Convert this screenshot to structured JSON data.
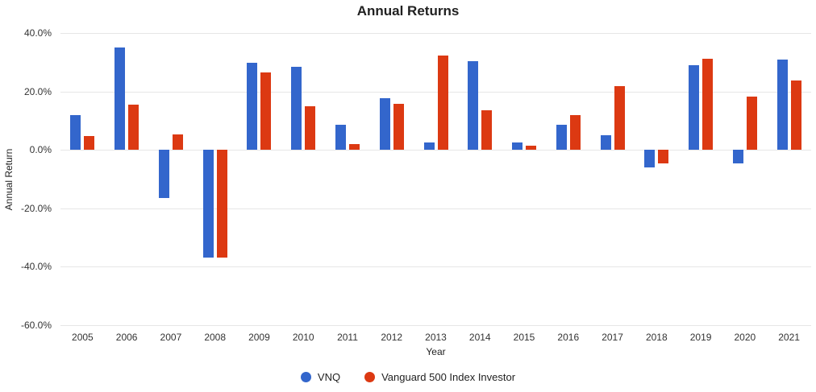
{
  "chart_data": {
    "type": "bar",
    "title": "Annual Returns",
    "xlabel": "Year",
    "ylabel": "Annual Return",
    "grid": true,
    "legend_position": "bottom",
    "ylim": [
      -60,
      40
    ],
    "ytick_step": 20,
    "yticks": [
      {
        "value": 40,
        "label": "40.0%"
      },
      {
        "value": 20,
        "label": "20.0%"
      },
      {
        "value": 0,
        "label": "0.0%"
      },
      {
        "value": -20,
        "label": "-20.0%"
      },
      {
        "value": -40,
        "label": "-40.0%"
      },
      {
        "value": -60,
        "label": "-60.0%"
      }
    ],
    "categories": [
      "2005",
      "2006",
      "2007",
      "2008",
      "2009",
      "2010",
      "2011",
      "2012",
      "2013",
      "2014",
      "2015",
      "2016",
      "2017",
      "2018",
      "2019",
      "2020",
      "2021"
    ],
    "series": [
      {
        "name": "VNQ",
        "color": "#3366cc",
        "values": [
          11.9,
          35.1,
          -16.5,
          -37.0,
          29.8,
          28.4,
          8.6,
          17.7,
          2.4,
          30.3,
          2.4,
          8.5,
          4.9,
          -6.0,
          28.9,
          -4.6,
          30.9
        ]
      },
      {
        "name": "Vanguard 500 Index Investor",
        "color": "#dc3912",
        "values": [
          4.8,
          15.6,
          5.4,
          -37.0,
          26.5,
          14.9,
          2.0,
          15.8,
          32.2,
          13.5,
          1.3,
          11.8,
          21.7,
          -4.5,
          31.3,
          18.3,
          23.7
        ]
      }
    ]
  }
}
